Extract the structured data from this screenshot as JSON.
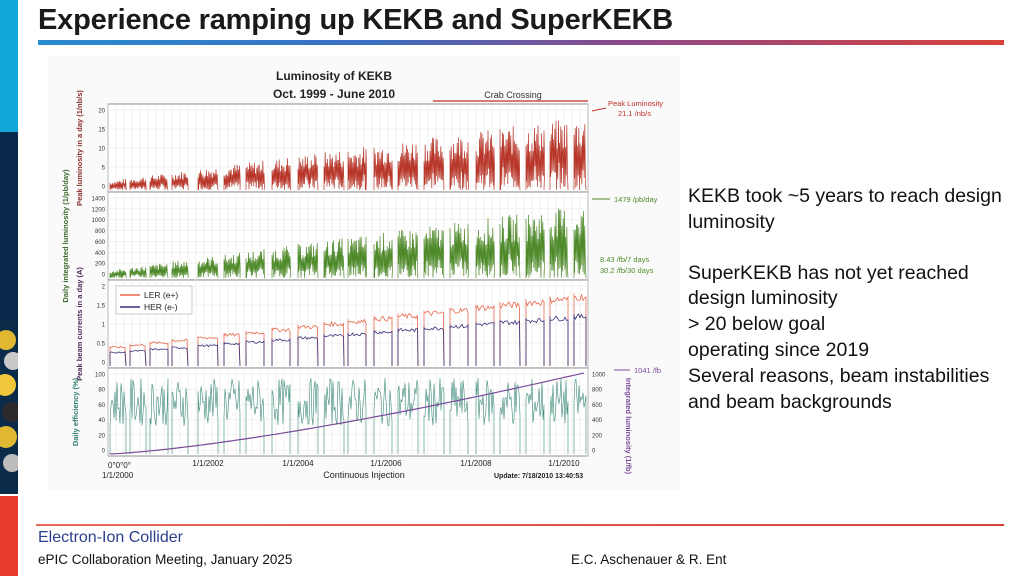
{
  "slide": {
    "title": "Experience ramping up KEKB and SuperKEKB",
    "bullets": [
      "KEKB took ~5 years to reach design luminosity",
      "SuperKEKB has not yet reached design luminosity",
      "> 20 below goal",
      "operating since 2019",
      "Several reasons, beam instabilities and beam backgrounds"
    ]
  },
  "footer": {
    "logo_text": "Electron-Ion Collider",
    "meeting": "ePIC Collaboration Meeting, January 2025",
    "authors": "E.C. Aschenauer & R. Ent"
  },
  "figure": {
    "title_line1": "Luminosity of KEKB",
    "title_line2": "Oct. 1999 - June 2010",
    "crab_label": "Crab Crossing",
    "peak_annot_1": "Peak Luminosity",
    "peak_annot_2": "21.1 /nb/s",
    "daily_annot": "1479 /pb/day",
    "week_annot": "8.43 /fb/7 days",
    "month_annot": "30.2 /fb/30 days",
    "integ_annot": "1041 /fb",
    "ler_label": "LER (e+)",
    "her_label": "HER (e-)",
    "x_ticks": [
      "1/1/2002",
      "1/1/2004",
      "1/1/2006",
      "1/1/2008",
      "1/1/2010"
    ],
    "x_start_label": "1/1/2000",
    "x_start_small": "0°0°0°",
    "x_axis_label": "Continuous Injection",
    "update_label": "Update: 7/18/2010 13:40:53",
    "panel_labels": {
      "peak": "Peak luminosity in a day (1/nb/s)",
      "daily": "Daily integrated luminosity (1/pb/day)",
      "current": "Peak beam currents in a day (A)",
      "efficiency": "Daily efficiency (%)",
      "integrated": "Integrated luminosity (1/fb)"
    },
    "peak_ticks": [
      "20",
      "15",
      "10",
      "5",
      "0"
    ],
    "daily_ticks": [
      "1400",
      "1200",
      "1000",
      "800",
      "600",
      "400",
      "200",
      "0"
    ],
    "current_ticks": [
      "2",
      "1.5",
      "1",
      "0.5",
      "0"
    ],
    "eff_ticks": [
      "100",
      "80",
      "60",
      "40",
      "20",
      "0"
    ],
    "integ_ticks": [
      "1000",
      "800",
      "600",
      "400",
      "200",
      "0"
    ],
    "colors": {
      "peak": "#b8372a",
      "daily": "#4f8a2a",
      "ler": "#e8694e",
      "her": "#3b2f7a",
      "eff": "#3d8a7a",
      "integ": "#7a4a9a",
      "annot": "#c0302a"
    }
  }
}
